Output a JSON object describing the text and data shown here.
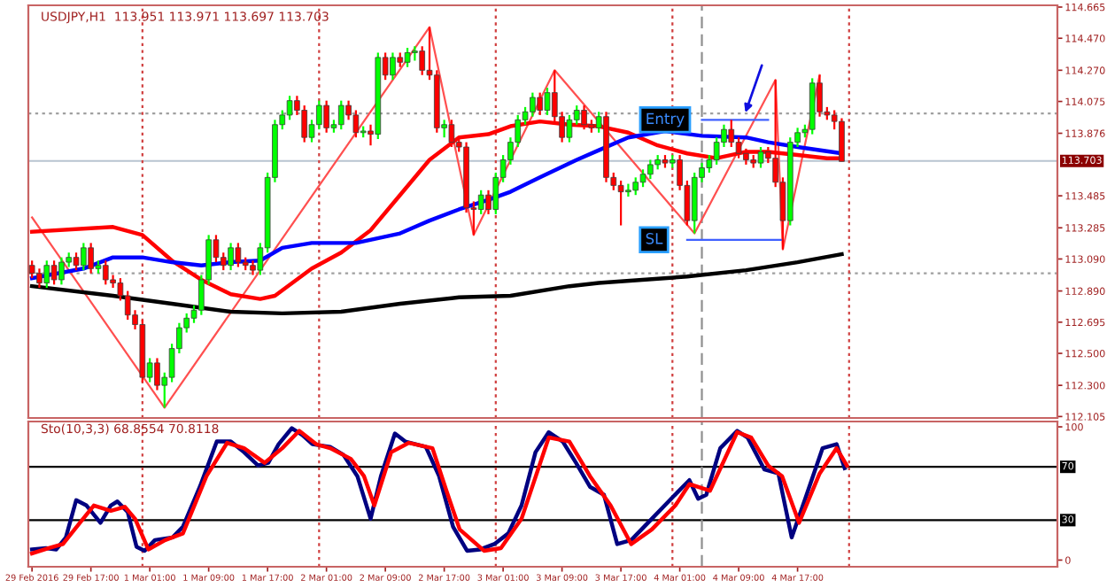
{
  "chart_data": [
    {
      "type": "candlestick",
      "title": "USDJPY,H1  113.951 113.971 113.697 113.703",
      "x": [
        "2016-02-29T09:00",
        "2016-02-29T10:00",
        "2016-02-29T11:00",
        "2016-02-29T12:00",
        "2016-02-29T13:00",
        "2016-02-29T14:00",
        "2016-02-29T15:00",
        "2016-02-29T16:00",
        "2016-02-29T17:00",
        "2016-02-29T18:00",
        "2016-02-29T19:00",
        "2016-02-29T20:00",
        "2016-02-29T21:00",
        "2016-02-29T22:00",
        "2016-02-29T23:00",
        "2016-03-01T00:00",
        "2016-03-01T01:00",
        "2016-03-01T02:00",
        "2016-03-01T03:00",
        "2016-03-01T04:00",
        "2016-03-01T05:00",
        "2016-03-01T06:00",
        "2016-03-01T07:00",
        "2016-03-01T08:00",
        "2016-03-01T09:00",
        "2016-03-01T10:00",
        "2016-03-01T11:00",
        "2016-03-01T12:00",
        "2016-03-01T13:00",
        "2016-03-01T14:00",
        "2016-03-01T15:00",
        "2016-03-01T16:00",
        "2016-03-01T17:00",
        "2016-03-01T18:00",
        "2016-03-01T19:00",
        "2016-03-01T20:00",
        "2016-03-01T21:00",
        "2016-03-01T22:00",
        "2016-03-01T23:00",
        "2016-03-02T00:00",
        "2016-03-02T01:00",
        "2016-03-02T02:00",
        "2016-03-02T03:00",
        "2016-03-02T04:00",
        "2016-03-02T05:00",
        "2016-03-02T06:00",
        "2016-03-02T07:00",
        "2016-03-02T08:00",
        "2016-03-02T09:00",
        "2016-03-02T10:00",
        "2016-03-02T11:00",
        "2016-03-02T12:00",
        "2016-03-02T13:00",
        "2016-03-02T14:00",
        "2016-03-02T15:00",
        "2016-03-02T16:00",
        "2016-03-02T17:00",
        "2016-03-02T18:00",
        "2016-03-02T19:00",
        "2016-03-02T20:00",
        "2016-03-02T21:00",
        "2016-03-02T22:00",
        "2016-03-02T23:00",
        "2016-03-03T00:00",
        "2016-03-03T01:00",
        "2016-03-03T02:00",
        "2016-03-03T03:00",
        "2016-03-03T04:00",
        "2016-03-03T05:00",
        "2016-03-03T06:00",
        "2016-03-03T07:00",
        "2016-03-03T08:00",
        "2016-03-03T09:00",
        "2016-03-03T10:00",
        "2016-03-03T11:00",
        "2016-03-03T12:00",
        "2016-03-03T13:00",
        "2016-03-03T14:00",
        "2016-03-03T15:00",
        "2016-03-03T16:00",
        "2016-03-03T17:00",
        "2016-03-03T18:00",
        "2016-03-03T19:00",
        "2016-03-03T20:00",
        "2016-03-03T21:00",
        "2016-03-03T22:00",
        "2016-03-03T23:00",
        "2016-03-04T00:00",
        "2016-03-04T01:00",
        "2016-03-04T02:00",
        "2016-03-04T03:00",
        "2016-03-04T04:00",
        "2016-03-04T05:00",
        "2016-03-04T06:00",
        "2016-03-04T07:00",
        "2016-03-04T08:00",
        "2016-03-04T09:00",
        "2016-03-04T10:00",
        "2016-03-04T11:00",
        "2016-03-04T12:00",
        "2016-03-04T13:00",
        "2016-03-04T14:00",
        "2016-03-04T15:00",
        "2016-03-04T16:00",
        "2016-03-04T17:00",
        "2016-03-04T18:00",
        "2016-03-04T19:00",
        "2016-03-04T20:00",
        "2016-03-04T21:00",
        "2016-03-04T22:00",
        "2016-03-04T23:00"
      ],
      "ohlc": [
        [
          113.05,
          113.08,
          112.97,
          113.0
        ],
        [
          113.0,
          113.03,
          112.91,
          112.94
        ],
        [
          112.94,
          113.08,
          112.91,
          113.05
        ],
        [
          113.05,
          113.08,
          112.93,
          112.96
        ],
        [
          112.96,
          113.1,
          112.93,
          113.07
        ],
        [
          113.07,
          113.13,
          113.04,
          113.1
        ],
        [
          113.1,
          113.13,
          113.02,
          113.05
        ],
        [
          113.05,
          113.19,
          113.02,
          113.16
        ],
        [
          113.16,
          113.19,
          113.0,
          113.03
        ],
        [
          113.03,
          113.08,
          113.0,
          113.05
        ],
        [
          113.05,
          113.08,
          112.93,
          112.96
        ],
        [
          112.96,
          112.99,
          112.91,
          112.94
        ],
        [
          112.94,
          112.97,
          112.83,
          112.86
        ],
        [
          112.86,
          112.89,
          112.71,
          112.74
        ],
        [
          112.74,
          112.77,
          112.65,
          112.68
        ],
        [
          112.68,
          112.71,
          112.32,
          112.35
        ],
        [
          112.35,
          112.47,
          112.32,
          112.44
        ],
        [
          112.44,
          112.47,
          112.27,
          112.3
        ],
        [
          112.3,
          112.38,
          112.16,
          112.35
        ],
        [
          112.35,
          112.56,
          112.32,
          112.53
        ],
        [
          112.53,
          112.69,
          112.5,
          112.66
        ],
        [
          112.66,
          112.75,
          112.63,
          112.72
        ],
        [
          112.72,
          112.8,
          112.69,
          112.77
        ],
        [
          112.77,
          112.99,
          112.74,
          112.96
        ],
        [
          112.96,
          113.24,
          112.93,
          113.21
        ],
        [
          113.21,
          113.24,
          113.07,
          113.1
        ],
        [
          113.1,
          113.13,
          113.02,
          113.05
        ],
        [
          113.05,
          113.19,
          113.02,
          113.16
        ],
        [
          113.16,
          113.19,
          113.04,
          113.07
        ],
        [
          113.07,
          113.1,
          113.02,
          113.05
        ],
        [
          113.05,
          113.08,
          112.99,
          113.02
        ],
        [
          113.02,
          113.19,
          112.99,
          113.16
        ],
        [
          113.16,
          113.63,
          113.13,
          113.6
        ],
        [
          113.6,
          113.96,
          113.57,
          113.93
        ],
        [
          113.93,
          114.02,
          113.9,
          113.99
        ],
        [
          113.99,
          114.11,
          113.96,
          114.08
        ],
        [
          114.08,
          114.11,
          113.99,
          114.02
        ],
        [
          114.02,
          114.05,
          113.82,
          113.85
        ],
        [
          113.85,
          113.96,
          113.82,
          113.93
        ],
        [
          113.93,
          114.08,
          113.9,
          114.05
        ],
        [
          114.05,
          114.08,
          113.88,
          113.91
        ],
        [
          113.91,
          113.96,
          113.88,
          113.93
        ],
        [
          113.93,
          114.08,
          113.9,
          114.05
        ],
        [
          114.05,
          114.08,
          113.96,
          113.99
        ],
        [
          113.99,
          114.02,
          113.85,
          113.88
        ],
        [
          113.88,
          113.92,
          113.85,
          113.89
        ],
        [
          113.89,
          113.93,
          113.8,
          113.87
        ],
        [
          113.87,
          114.38,
          113.84,
          114.35
        ],
        [
          114.35,
          114.38,
          114.21,
          114.24
        ],
        [
          114.24,
          114.38,
          114.21,
          114.35
        ],
        [
          114.35,
          114.38,
          114.29,
          114.32
        ],
        [
          114.32,
          114.41,
          114.29,
          114.38
        ],
        [
          114.38,
          114.42,
          114.33,
          114.39
        ],
        [
          114.39,
          114.42,
          114.24,
          114.27
        ],
        [
          114.27,
          114.54,
          114.21,
          114.24
        ],
        [
          114.24,
          114.27,
          113.88,
          113.91
        ],
        [
          113.91,
          113.96,
          113.85,
          113.93
        ],
        [
          113.93,
          113.96,
          113.79,
          113.82
        ],
        [
          113.82,
          113.85,
          113.76,
          113.79
        ],
        [
          113.79,
          113.82,
          113.38,
          113.41
        ],
        [
          113.41,
          113.45,
          113.24,
          113.4
        ],
        [
          113.4,
          113.52,
          113.37,
          113.49
        ],
        [
          113.49,
          113.52,
          113.37,
          113.4
        ],
        [
          113.4,
          113.63,
          113.37,
          113.6
        ],
        [
          113.6,
          113.74,
          113.57,
          113.71
        ],
        [
          113.71,
          113.85,
          113.68,
          113.82
        ],
        [
          113.82,
          113.99,
          113.79,
          113.96
        ],
        [
          113.96,
          114.04,
          113.93,
          114.01
        ],
        [
          114.01,
          114.13,
          113.98,
          114.1
        ],
        [
          114.1,
          114.13,
          113.99,
          114.02
        ],
        [
          114.02,
          114.16,
          113.99,
          114.13
        ],
        [
          114.13,
          114.27,
          113.95,
          113.98
        ],
        [
          113.98,
          114.01,
          113.82,
          113.85
        ],
        [
          113.85,
          113.99,
          113.82,
          113.96
        ],
        [
          113.96,
          114.05,
          113.93,
          114.02
        ],
        [
          114.02,
          114.05,
          113.9,
          113.93
        ],
        [
          113.93,
          113.96,
          113.88,
          113.91
        ],
        [
          113.91,
          114.01,
          113.88,
          113.98
        ],
        [
          113.98,
          114.01,
          113.57,
          113.6
        ],
        [
          113.6,
          113.63,
          113.52,
          113.55
        ],
        [
          113.55,
          113.58,
          113.3,
          113.51
        ],
        [
          113.51,
          113.56,
          113.48,
          113.52
        ],
        [
          113.52,
          113.6,
          113.49,
          113.57
        ],
        [
          113.57,
          113.65,
          113.54,
          113.62
        ],
        [
          113.62,
          113.71,
          113.59,
          113.68
        ],
        [
          113.68,
          113.74,
          113.65,
          113.71
        ],
        [
          113.71,
          113.74,
          113.66,
          113.69
        ],
        [
          113.69,
          113.74,
          113.66,
          113.71
        ],
        [
          113.71,
          113.74,
          113.52,
          113.55
        ],
        [
          113.55,
          113.58,
          113.3,
          113.33
        ],
        [
          113.33,
          113.63,
          113.25,
          113.6
        ],
        [
          113.6,
          113.69,
          113.57,
          113.66
        ],
        [
          113.66,
          113.74,
          113.63,
          113.71
        ],
        [
          113.71,
          113.85,
          113.68,
          113.82
        ],
        [
          113.82,
          113.93,
          113.79,
          113.9
        ],
        [
          113.9,
          113.96,
          113.79,
          113.82
        ],
        [
          113.82,
          113.85,
          113.72,
          113.75
        ],
        [
          113.75,
          113.78,
          113.68,
          113.71
        ],
        [
          113.71,
          113.74,
          113.66,
          113.69
        ],
        [
          113.69,
          113.79,
          113.66,
          113.76
        ],
        [
          113.76,
          113.79,
          113.69,
          113.72
        ],
        [
          113.72,
          114.21,
          113.54,
          113.57
        ],
        [
          113.57,
          113.6,
          113.15,
          113.33
        ],
        [
          113.33,
          113.85,
          113.3,
          113.82
        ],
        [
          113.82,
          113.91,
          113.79,
          113.88
        ],
        [
          113.88,
          113.93,
          113.85,
          113.9
        ],
        [
          113.9,
          114.22,
          113.87,
          114.19
        ],
        [
          114.19,
          114.24,
          113.98,
          114.01
        ],
        [
          114.01,
          114.04,
          113.96,
          113.99
        ],
        [
          113.99,
          114.02,
          113.9,
          113.95
        ],
        [
          113.95,
          113.97,
          113.7,
          113.7
        ]
      ],
      "colors": [
        "#ff0000",
        "#ff0000",
        "#00ff00",
        "#ff0000",
        "#00ff00",
        "#00ff00",
        "#ff0000",
        "#00ff00",
        "#ff0000",
        "#00ff00",
        "#ff0000",
        "#ff0000",
        "#ff0000",
        "#ff0000",
        "#ff0000",
        "#ff0000",
        "#00ff00",
        "#ff0000",
        "#00ff00",
        "#00ff00",
        "#00ff00",
        "#00ff00",
        "#00ff00",
        "#00ff00",
        "#00ff00",
        "#ff0000",
        "#ff0000",
        "#00ff00",
        "#ff0000",
        "#ff0000",
        "#ff0000",
        "#00ff00",
        "#00ff00",
        "#00ff00",
        "#00ff00",
        "#00ff00",
        "#ff0000",
        "#ff0000",
        "#00ff00",
        "#00ff00",
        "#ff0000",
        "#00ff00",
        "#00ff00",
        "#ff0000",
        "#ff0000",
        "#00ff00",
        "#ff0000",
        "#00ff00",
        "#ff0000",
        "#00ff00",
        "#ff0000",
        "#00ff00",
        "#00ff00",
        "#ff0000",
        "#ff0000",
        "#ff0000",
        "#00ff00",
        "#ff0000",
        "#ff0000",
        "#ff0000",
        "#ff0000",
        "#00ff00",
        "#ff0000",
        "#00ff00",
        "#00ff00",
        "#00ff00",
        "#00ff00",
        "#00ff00",
        "#00ff00",
        "#ff0000",
        "#00ff00",
        "#ff0000",
        "#ff0000",
        "#00ff00",
        "#00ff00",
        "#ff0000",
        "#ff0000",
        "#00ff00",
        "#ff0000",
        "#ff0000",
        "#ff0000",
        "#00ff00",
        "#00ff00",
        "#00ff00",
        "#00ff00",
        "#00ff00",
        "#ff0000",
        "#00ff00",
        "#ff0000",
        "#ff0000",
        "#00ff00",
        "#00ff00",
        "#00ff00",
        "#00ff00",
        "#00ff00",
        "#ff0000",
        "#ff0000",
        "#ff0000",
        "#ff0000",
        "#00ff00",
        "#ff0000",
        "#ff0000",
        "#ff0000",
        "#00ff00",
        "#00ff00",
        "#00ff00",
        "#00ff00",
        "#ff0000",
        "#ff0000",
        "#ff0000",
        "#ff0000"
      ],
      "series": [
        {
          "type": "line",
          "color": "#ff0000",
          "x": [
            "2016-02-29T09:00",
            "2016-02-29T20:00",
            "2016-03-01T00:00",
            "2016-03-01T04:00",
            "2016-03-01T08:00",
            "2016-03-01T12:00",
            "2016-03-01T16:00",
            "2016-03-01T18:00",
            "2016-03-01T23:00",
            "2016-03-02T03:00",
            "2016-03-02T07:00",
            "2016-03-02T11:00",
            "2016-03-02T15:00",
            "2016-03-02T19:00",
            "2016-03-02T23:00",
            "2016-03-03T02:00",
            "2016-03-03T06:00",
            "2016-03-03T10:00",
            "2016-03-03T14:00",
            "2016-03-03T18:00",
            "2016-03-03T22:00",
            "2016-03-04T02:00",
            "2016-03-04T06:00",
            "2016-03-04T10:00",
            "2016-03-04T13:00",
            "2016-03-04T17:00",
            "2016-03-04T21:00",
            "2016-03-04T23:00"
          ],
          "values": [
            113.26,
            113.29,
            113.24,
            113.08,
            112.96,
            112.87,
            112.84,
            112.86,
            113.03,
            113.13,
            113.27,
            113.49,
            113.71,
            113.85,
            113.87,
            113.92,
            113.95,
            113.93,
            113.92,
            113.88,
            113.8,
            113.75,
            113.72,
            113.76,
            113.76,
            113.74,
            113.72,
            113.72
          ]
        },
        {
          "type": "line",
          "color": "#0000ff",
          "x": [
            "2016-02-29T09:00",
            "2016-02-29T16:00",
            "2016-02-29T20:00",
            "2016-03-01T00:00",
            "2016-03-01T04:00",
            "2016-03-01T08:00",
            "2016-03-01T12:00",
            "2016-03-01T16:00",
            "2016-03-01T19:00",
            "2016-03-01T23:00",
            "2016-03-02T05:00",
            "2016-03-02T11:00",
            "2016-03-02T15:00",
            "2016-03-02T19:00",
            "2016-03-02T23:00",
            "2016-03-03T02:00",
            "2016-03-03T06:00",
            "2016-03-03T11:00",
            "2016-03-03T14:00",
            "2016-03-03T18:00",
            "2016-03-03T23:00",
            "2016-03-04T04:00",
            "2016-03-04T10:00",
            "2016-03-04T13:00",
            "2016-03-04T17:00",
            "2016-03-04T23:00"
          ],
          "values": [
            112.97,
            113.03,
            113.1,
            113.1,
            113.07,
            113.05,
            113.07,
            113.08,
            113.16,
            113.19,
            113.19,
            113.25,
            113.33,
            113.4,
            113.46,
            113.51,
            113.6,
            113.71,
            113.77,
            113.85,
            113.89,
            113.86,
            113.85,
            113.82,
            113.79,
            113.75
          ]
        },
        {
          "type": "line",
          "color": "#000000",
          "x": [
            "2016-02-29T09:00",
            "2016-02-29T20:00",
            "2016-03-01T04:00",
            "2016-03-01T12:00",
            "2016-03-01T19:00",
            "2016-03-02T03:00",
            "2016-03-02T11:00",
            "2016-03-02T19:00",
            "2016-03-03T02:00",
            "2016-03-03T10:00",
            "2016-03-03T14:00",
            "2016-03-04T02:00",
            "2016-03-04T10:00",
            "2016-03-04T17:00",
            "2016-03-04T23:00"
          ],
          "values": [
            112.92,
            112.86,
            112.81,
            112.76,
            112.75,
            112.76,
            112.81,
            112.85,
            112.86,
            112.92,
            112.94,
            112.98,
            113.02,
            113.07,
            113.12
          ]
        },
        {
          "type": "line",
          "color": "#ff5050",
          "x": [
            "2016-02-29T09:00",
            "2016-03-01T03:00",
            "2016-03-02T15:00",
            "2016-03-02T21:00",
            "2016-03-03T08:00",
            "2016-03-04T03:00",
            "2016-03-04T14:00",
            "2016-03-04T15:00",
            "2016-03-04T20:00"
          ],
          "values": [
            113.35,
            112.16,
            114.54,
            113.24,
            114.27,
            113.25,
            114.21,
            113.15,
            114.24
          ]
        },
        {
          "type": "line",
          "color": "#4060ff",
          "x": [
            "2016-03-04T04:00",
            "2016-03-04T13:00"
          ],
          "values": [
            113.96,
            113.96
          ]
        },
        {
          "type": "line",
          "color": "#4060ff",
          "x": [
            "2016-03-04T02:00",
            "2016-03-04T15:00"
          ],
          "values": [
            113.21,
            113.21
          ]
        }
      ],
      "xlim": [
        "2016-02-29T08:30",
        "2016-03-06T04:18"
      ],
      "ylim": [
        112.096,
        114.676
      ],
      "yticks": [
        114.665,
        {
          "value": 114.47,
          "label": "114.470"
        },
        {
          "value": 114.27,
          "label": "114.270"
        },
        114.075,
        113.876,
        113.485,
        113.285,
        {
          "value": 113.09,
          "label": "113.090"
        },
        {
          "value": 112.89,
          "label": "112.890"
        },
        112.695,
        {
          "value": 112.5,
          "label": "112.500"
        },
        {
          "value": 112.3,
          "label": "112.300"
        },
        112.105
      ],
      "tick_labels": "y",
      "ref_lines": [
        {
          "axis": "y",
          "value": 114.0,
          "color": "#a0a0a0",
          "line_style": "dotted"
        },
        {
          "axis": "y",
          "value": 113.0,
          "color": "#a0a0a0",
          "line_style": "dotted"
        },
        {
          "axis": "y",
          "value": 113.703,
          "label": "113.703",
          "color": "#b8c4d0",
          "line_style": "solid"
        },
        {
          "axis": "x",
          "value": "2016-03-01T00:00",
          "color": "#d04040",
          "line_style": "dotted"
        },
        {
          "axis": "x",
          "value": "2016-03-02T00:00",
          "color": "#d04040",
          "line_style": "dotted"
        },
        {
          "axis": "x",
          "value": "2016-03-03T00:00",
          "color": "#d04040",
          "line_style": "dotted"
        },
        {
          "axis": "x",
          "value": "2016-03-04T00:00",
          "color": "#d04040",
          "line_style": "dotted"
        },
        {
          "axis": "x",
          "value": "2016-03-05T00:00",
          "color": "#d04040",
          "line_style": "dotted"
        },
        {
          "axis": "x",
          "value": "2016-03-04T04:00",
          "color": "#909090",
          "line_style": "dashed"
        }
      ],
      "annotations": [
        {
          "text": "Entry",
          "x": "2016-03-03T23:00",
          "y": 113.96
        },
        {
          "text": "SL",
          "x": "2016-03-03T21:30",
          "y": 113.21
        }
      ]
    },
    {
      "type": "line",
      "title": "Sto(10,3,3) 68.8554 70.8118",
      "series": [
        {
          "color": "#000080",
          "x": [
            "2016-02-29T09:00",
            "2016-02-29T10:54",
            "2016-02-29T12:18",
            "2016-02-29T13:36",
            "2016-02-29T15:00",
            "2016-02-29T16:24",
            "2016-02-29T18:18",
            "2016-02-29T19:42",
            "2016-02-29T20:36",
            "2016-02-29T22:00",
            "2016-02-29T23:12",
            "2016-03-01T00:18",
            "2016-03-01T01:42",
            "2016-03-01T04:06",
            "2016-03-01T05:30",
            "2016-03-01T07:48",
            "2016-03-01T10:06",
            "2016-03-01T12:00",
            "2016-03-01T13:48",
            "2016-03-01T15:42",
            "2016-03-01T17:06",
            "2016-03-01T18:30",
            "2016-03-01T20:18",
            "2016-03-01T21:42",
            "2016-03-01T23:06",
            "2016-03-02T01:30",
            "2016-03-02T03:18",
            "2016-03-02T05:12",
            "2016-03-02T07:00",
            "2016-03-02T08:24",
            "2016-03-02T10:18",
            "2016-03-02T11:42",
            "2016-03-02T14:30",
            "2016-03-02T16:18",
            "2016-03-02T18:12",
            "2016-03-02T20:06",
            "2016-03-02T21:54",
            "2016-03-02T23:48",
            "2016-03-03T01:42",
            "2016-03-03T03:30",
            "2016-03-03T05:24",
            "2016-03-03T07:12",
            "2016-03-03T09:06",
            "2016-03-03T10:54",
            "2016-03-03T12:48",
            "2016-03-03T14:42",
            "2016-03-03T16:30",
            "2016-03-03T18:24",
            "2016-03-03T21:12",
            "2016-03-04T00:00",
            "2016-03-04T02:18",
            "2016-03-04T03:30",
            "2016-03-04T04:36",
            "2016-03-04T06:30",
            "2016-03-04T08:48",
            "2016-03-04T10:12",
            "2016-03-04T12:30",
            "2016-03-04T14:24",
            "2016-03-04T16:12",
            "2016-03-04T18:06",
            "2016-03-04T20:24",
            "2016-03-04T22:18",
            "2016-03-04T23:24"
          ],
          "values": [
            8,
            9,
            8,
            17,
            45,
            41,
            28,
            41,
            44,
            36,
            10,
            7,
            15,
            17,
            25,
            55,
            89,
            89,
            81,
            71,
            73,
            87,
            99,
            94,
            87,
            85,
            79,
            63,
            31,
            63,
            95,
            89,
            85,
            63,
            25,
            7,
            8,
            12,
            20,
            41,
            81,
            96,
            89,
            73,
            55,
            49,
            12,
            15,
            31,
            47,
            60,
            46,
            49,
            84,
            97,
            92,
            68,
            65,
            17,
            47,
            84,
            87,
            69
          ]
        },
        {
          "color": "#ff0000",
          "x": [
            "2016-02-29T09:00",
            "2016-02-29T11:18",
            "2016-02-29T13:12",
            "2016-02-29T15:30",
            "2016-02-29T17:24",
            "2016-02-29T19:42",
            "2016-02-29T21:36",
            "2016-02-29T23:00",
            "2016-03-01T00:48",
            "2016-03-01T03:06",
            "2016-03-01T05:30",
            "2016-03-01T08:42",
            "2016-03-01T11:30",
            "2016-03-01T13:48",
            "2016-03-01T16:36",
            "2016-03-01T19:00",
            "2016-03-01T21:18",
            "2016-03-01T23:36",
            "2016-03-02T01:30",
            "2016-03-02T04:18",
            "2016-03-02T06:06",
            "2016-03-02T07:30",
            "2016-03-02T09:48",
            "2016-03-02T12:12",
            "2016-03-02T15:24",
            "2016-03-02T17:18",
            "2016-03-02T19:06",
            "2016-03-02T22:24",
            "2016-03-03T00:42",
            "2016-03-03T03:30",
            "2016-03-03T07:12",
            "2016-03-03T10:00",
            "2016-03-03T12:48",
            "2016-03-03T15:36",
            "2016-03-03T18:24",
            "2016-03-03T21:12",
            "2016-03-04T00:24",
            "2016-03-04T02:18",
            "2016-03-04T05:06",
            "2016-03-04T08:48",
            "2016-03-04T10:42",
            "2016-03-04T13:00",
            "2016-03-04T14:54",
            "2016-03-04T17:12",
            "2016-03-04T20:00",
            "2016-03-04T22:18",
            "2016-03-04T23:42"
          ],
          "values": [
            5,
            9,
            12,
            28,
            41,
            37,
            40,
            31,
            8,
            15,
            20,
            63,
            88,
            84,
            73,
            84,
            97,
            87,
            84,
            76,
            63,
            41,
            81,
            88,
            84,
            52,
            23,
            7,
            9,
            31,
            92,
            89,
            63,
            41,
            12,
            23,
            41,
            57,
            52,
            96,
            92,
            71,
            63,
            28,
            65,
            84,
            71
          ]
        }
      ],
      "xlim": [
        "2016-02-29T08:30",
        "2016-03-06T04:18"
      ],
      "ylim": [
        -5,
        104
      ],
      "yticks": [
        0,
        100
      ],
      "xticks": [
        {
          "value": "2016-02-29T09:00",
          "label": "29 Feb 2016"
        },
        {
          "value": "2016-02-29T17:00",
          "label": "29 Feb 17:00"
        },
        {
          "value": "2016-03-01T01:00",
          "label": "1 Mar 01:00"
        },
        {
          "value": "2016-03-01T09:00",
          "label": "1 Mar 09:00"
        },
        {
          "value": "2016-03-01T17:00",
          "label": "1 Mar 17:00"
        },
        {
          "value": "2016-03-02T01:00",
          "label": "2 Mar 01:00"
        },
        {
          "value": "2016-03-02T09:00",
          "label": "2 Mar 09:00"
        },
        {
          "value": "2016-03-02T17:00",
          "label": "2 Mar 17:00"
        },
        {
          "value": "2016-03-03T01:00",
          "label": "3 Mar 01:00"
        },
        {
          "value": "2016-03-03T09:00",
          "label": "3 Mar 09:00"
        },
        {
          "value": "2016-03-03T17:00",
          "label": "3 Mar 17:00"
        },
        {
          "value": "2016-03-04T01:00",
          "label": "4 Mar 01:00"
        },
        {
          "value": "2016-03-04T09:00",
          "label": "4 Mar 09:00"
        },
        {
          "value": "2016-03-04T17:00",
          "label": "4 Mar 17:00"
        }
      ],
      "ref_lines": [
        {
          "axis": "y",
          "value": 70,
          "label": "70",
          "color": "#000000",
          "line_style": "solid"
        },
        {
          "axis": "y",
          "value": 30,
          "label": "30",
          "color": "#000000",
          "line_style": "solid"
        },
        {
          "axis": "x",
          "value": "2016-03-01T00:00",
          "color": "#d04040",
          "line_style": "dotted"
        },
        {
          "axis": "x",
          "value": "2016-03-02T00:00",
          "color": "#d04040",
          "line_style": "dotted"
        },
        {
          "axis": "x",
          "value": "2016-03-03T00:00",
          "color": "#d04040",
          "line_style": "dotted"
        },
        {
          "axis": "x",
          "value": "2016-03-04T00:00",
          "color": "#d04040",
          "line_style": "dotted"
        },
        {
          "axis": "x",
          "value": "2016-03-05T00:00",
          "color": "#d04040",
          "line_style": "dotted"
        },
        {
          "axis": "x",
          "value": "2016-03-04T04:00",
          "color": "#909090",
          "line_style": "dashed"
        }
      ]
    }
  ]
}
